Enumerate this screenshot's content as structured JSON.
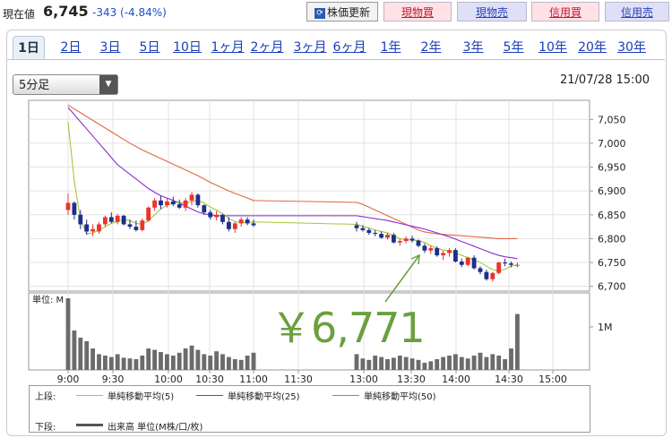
{
  "header": {
    "price_label": "現在値",
    "price": "6,745",
    "change": "-343 (-4.84%)"
  },
  "buttons": {
    "refresh": "株価更新",
    "refresh_icon": "refresh-icon",
    "cash_buy": "現物買",
    "cash_sell": "現物売",
    "margin_buy": "信用買",
    "margin_sell": "信用売"
  },
  "tabs": [
    "1日",
    "2日",
    "3日",
    "5日",
    "10日",
    "1ヶ月",
    "2ヶ月",
    "3ヶ月",
    "6ヶ月",
    "1年",
    "2年",
    "3年",
    "5年",
    "10年",
    "20年",
    "30年"
  ],
  "interval_select": "5分足",
  "datetime": "21/07/28 15:00",
  "annotation": "￥6,771",
  "volume_label": "単位: M",
  "legend": {
    "upper": "上段:",
    "lower": "下段:",
    "ma5": "単純移動平均(5)",
    "ma25": "単純移動平均(25)",
    "ma50": "単純移動平均(50)",
    "volume": "出来高 単位(M株/口/枚)"
  },
  "chart_data": {
    "type": "candlestick",
    "x_ticks": [
      "9:00",
      "9:30",
      "10:00",
      "10:30",
      "11:00",
      "11:30",
      "13:00",
      "13:30",
      "14:00",
      "14:30",
      "15:00"
    ],
    "price_ticks": [
      7050,
      7000,
      6950,
      6900,
      6850,
      6800,
      6750,
      6700
    ],
    "ylim": [
      6690,
      7090
    ],
    "volume_ticks": [
      "1M"
    ],
    "colors": {
      "up": "#e8352f",
      "down": "#1e2e8c",
      "ma5": "#a3c93a",
      "ma25": "#8b2bd1",
      "ma50": "#de6a3f",
      "volume": "#6b6b6b",
      "annotation": "#6aa03d"
    },
    "am_candles": [
      [
        6860,
        6895,
        6850,
        6875
      ],
      [
        6875,
        6878,
        6840,
        6850
      ],
      [
        6850,
        6860,
        6820,
        6830
      ],
      [
        6830,
        6840,
        6808,
        6815
      ],
      [
        6815,
        6830,
        6805,
        6820
      ],
      [
        6815,
        6835,
        6810,
        6830
      ],
      [
        6830,
        6848,
        6825,
        6845
      ],
      [
        6845,
        6855,
        6832,
        6835
      ],
      [
        6835,
        6852,
        6830,
        6848
      ],
      [
        6848,
        6850,
        6828,
        6830
      ],
      [
        6830,
        6840,
        6820,
        6825
      ],
      [
        6825,
        6838,
        6815,
        6818
      ],
      [
        6818,
        6842,
        6815,
        6838
      ],
      [
        6838,
        6868,
        6835,
        6865
      ],
      [
        6865,
        6885,
        6858,
        6880
      ],
      [
        6880,
        6890,
        6862,
        6870
      ],
      [
        6870,
        6885,
        6865,
        6878
      ],
      [
        6878,
        6888,
        6868,
        6872
      ],
      [
        6872,
        6882,
        6862,
        6865
      ],
      [
        6865,
        6885,
        6858,
        6880
      ],
      [
        6880,
        6898,
        6870,
        6892
      ],
      [
        6892,
        6895,
        6865,
        6870
      ],
      [
        6870,
        6872,
        6850,
        6855
      ],
      [
        6855,
        6860,
        6840,
        6845
      ],
      [
        6845,
        6858,
        6838,
        6850
      ],
      [
        6850,
        6852,
        6830,
        6835
      ],
      [
        6835,
        6845,
        6815,
        6820
      ],
      [
        6820,
        6835,
        6812,
        6832
      ],
      [
        6832,
        6845,
        6825,
        6840
      ],
      [
        6840,
        6845,
        6828,
        6832
      ],
      [
        6832,
        6840,
        6825,
        6828
      ]
    ],
    "pm_candles": [
      [
        6828,
        6835,
        6815,
        6822
      ],
      [
        6822,
        6828,
        6815,
        6818
      ],
      [
        6818,
        6822,
        6808,
        6812
      ],
      [
        6812,
        6818,
        6805,
        6810
      ],
      [
        6810,
        6815,
        6800,
        6802
      ],
      [
        6802,
        6812,
        6798,
        6808
      ],
      [
        6808,
        6812,
        6790,
        6792
      ],
      [
        6792,
        6800,
        6785,
        6795
      ],
      [
        6795,
        6805,
        6790,
        6800
      ],
      [
        6800,
        6806,
        6792,
        6796
      ],
      [
        6796,
        6798,
        6782,
        6785
      ],
      [
        6785,
        6790,
        6770,
        6775
      ],
      [
        6775,
        6786,
        6768,
        6780
      ],
      [
        6780,
        6784,
        6762,
        6765
      ],
      [
        6765,
        6775,
        6755,
        6770
      ],
      [
        6770,
        6780,
        6762,
        6776
      ],
      [
        6776,
        6780,
        6750,
        6752
      ],
      [
        6752,
        6758,
        6740,
        6745
      ],
      [
        6745,
        6762,
        6742,
        6760
      ],
      [
        6760,
        6765,
        6735,
        6738
      ],
      [
        6738,
        6742,
        6725,
        6730
      ],
      [
        6730,
        6735,
        6712,
        6715
      ],
      [
        6715,
        6730,
        6710,
        6728
      ],
      [
        6728,
        6752,
        6725,
        6750
      ],
      [
        6750,
        6758,
        6742,
        6748
      ],
      [
        6748,
        6752,
        6740,
        6745
      ],
      [
        6745,
        6750,
        6740,
        6745
      ]
    ],
    "am_volume": [
      1.0,
      0.55,
      0.45,
      0.4,
      0.3,
      0.22,
      0.2,
      0.18,
      0.22,
      0.17,
      0.16,
      0.15,
      0.2,
      0.3,
      0.28,
      0.25,
      0.22,
      0.2,
      0.24,
      0.3,
      0.34,
      0.28,
      0.22,
      0.2,
      0.26,
      0.22,
      0.18,
      0.15,
      0.14,
      0.2,
      0.24
    ],
    "pm_volume": [
      0.22,
      0.16,
      0.14,
      0.2,
      0.18,
      0.15,
      0.17,
      0.2,
      0.18,
      0.16,
      0.14,
      0.1,
      0.12,
      0.15,
      0.18,
      0.2,
      0.22,
      0.18,
      0.16,
      0.2,
      0.24,
      0.18,
      0.22,
      0.2,
      0.15,
      0.3,
      0.78
    ],
    "ma5_am": [
      7045,
      6920,
      6840,
      6810,
      6812,
      6818,
      6825,
      6832,
      6836,
      6840,
      6838,
      6832,
      6830,
      6838,
      6850,
      6862,
      6870,
      6875,
      6876,
      6874,
      6878,
      6880,
      6875,
      6866,
      6860,
      6852,
      6842,
      6836,
      6833,
      6834,
      6835
    ],
    "ma5_pm": [
      6830,
      6826,
      6822,
      6818,
      6815,
      6812,
      6806,
      6800,
      6798,
      6797,
      6796,
      6792,
      6785,
      6780,
      6776,
      6774,
      6770,
      6765,
      6760,
      6756,
      6750,
      6742,
      6735,
      6732,
      6736,
      6742,
      6745
    ],
    "ma25_am": [
      7075,
      7060,
      7045,
      7030,
      7015,
      7000,
      6985,
      6970,
      6955,
      6945,
      6935,
      6925,
      6915,
      6905,
      6897,
      6890,
      6885,
      6880,
      6875,
      6868,
      6862,
      6856,
      6852,
      6850,
      6848,
      6848,
      6848,
      6848,
      6848,
      6848,
      6848
    ],
    "ma25_pm": [
      6848,
      6846,
      6844,
      6842,
      6840,
      6838,
      6835,
      6832,
      6829,
      6826,
      6823,
      6820,
      6816,
      6812,
      6808,
      6804,
      6799,
      6794,
      6789,
      6784,
      6779,
      6774,
      6769,
      6765,
      6762,
      6760,
      6758
    ],
    "ma50_am": [
      7080,
      7072,
      7064,
      7056,
      7048,
      7040,
      7032,
      7024,
      7016,
      7008,
      7000,
      6993,
      6986,
      6980,
      6974,
      6968,
      6962,
      6956,
      6950,
      6944,
      6938,
      6932,
      6925,
      6918,
      6912,
      6906,
      6900,
      6895,
      6890,
      6885,
      6880
    ],
    "ma50_pm": [
      6876,
      6872,
      6866,
      6860,
      6854,
      6848,
      6842,
      6836,
      6830,
      6824,
      6818,
      6814,
      6812,
      6810,
      6809,
      6808,
      6807,
      6806,
      6805,
      6804,
      6803,
      6802,
      6801,
      6800,
      6800,
      6800,
      6800
    ]
  }
}
